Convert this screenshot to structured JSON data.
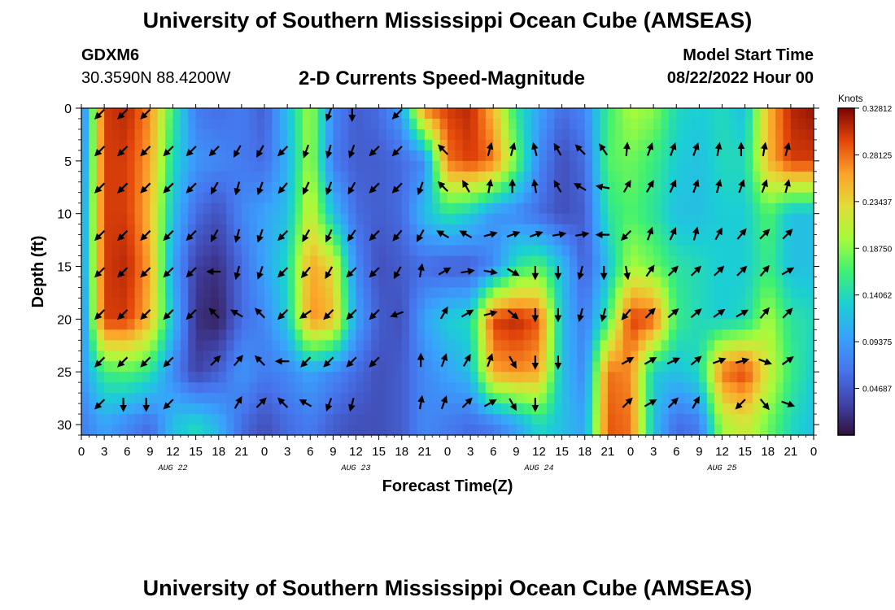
{
  "header": {
    "title": "University of Southern Mississippi Ocean Cube (AMSEAS)",
    "station_id": "GDXM6",
    "station_location": "30.3590N  88.4200W",
    "subtitle": "2-D Currents Speed-Magnitude",
    "model_start_label": "Model Start Time",
    "model_start_value": "08/22/2022 Hour 00"
  },
  "footer": {
    "title": "University of Southern Mississippi Ocean Cube (AMSEAS)"
  },
  "chart_data": {
    "type": "heatmap",
    "title": "2-D Currents Speed-Magnitude",
    "xlabel": "Forecast Time(Z)",
    "ylabel": "Depth (ft)",
    "xlim": [
      0,
      96
    ],
    "ylim": [
      0,
      31
    ],
    "x_ticks": [
      0,
      3,
      6,
      9,
      12,
      15,
      18,
      21,
      24,
      27,
      30,
      33,
      36,
      39,
      42,
      45,
      48,
      51,
      54,
      57,
      60,
      63,
      66,
      69,
      72,
      75,
      78,
      81,
      84,
      87,
      90,
      93,
      96
    ],
    "x_tick_labels": [
      "0",
      "3",
      "6",
      "9",
      "12",
      "15",
      "18",
      "21",
      "0",
      "3",
      "6",
      "9",
      "12",
      "15",
      "18",
      "21",
      "0",
      "3",
      "6",
      "9",
      "12",
      "15",
      "18",
      "21",
      "0",
      "3",
      "6",
      "9",
      "12",
      "15",
      "18",
      "21",
      "0"
    ],
    "y_ticks": [
      0,
      5,
      10,
      15,
      20,
      25,
      30
    ],
    "y_tick_labels": [
      "0",
      "5",
      "10",
      "15",
      "20",
      "25",
      "30"
    ],
    "date_labels": [
      {
        "x": 12,
        "label": "AUG 22"
      },
      {
        "x": 36,
        "label": "AUG 23"
      },
      {
        "x": 60,
        "label": "AUG 24"
      },
      {
        "x": 84,
        "label": "AUG 25"
      }
    ],
    "colorbar": {
      "label": "Knots",
      "min": 0.0,
      "max": 0.3281,
      "ticks": [
        "0.04687",
        "0.09375",
        "0.14062",
        "0.18750",
        "0.23437",
        "0.28125",
        "0.32812"
      ],
      "tick_values": [
        0.04687,
        0.09375,
        0.14062,
        0.1875,
        0.23437,
        0.28125,
        0.32812
      ]
    },
    "vector_times": [
      2.5,
      5.5,
      8.5,
      11.5,
      14.5,
      17.5,
      20.5,
      23.5,
      26.5,
      29.5,
      32.5,
      35.5,
      38.5,
      41.5,
      44.5,
      47.5,
      50.5,
      53.5,
      56.5,
      59.5,
      62.5,
      65.5,
      68.5,
      71.5,
      74.5,
      77.5,
      80.5,
      83.5,
      86.5,
      89.5,
      92.5
    ],
    "vector_depths": [
      0.5,
      4,
      7.5,
      12,
      15.5,
      19.5,
      24,
      28
    ],
    "speed_rows": [
      {
        "depth": 0,
        "values": [
          0.06,
          0.3,
          0.31,
          0.27,
          0.16,
          0.07,
          0.06,
          0.07,
          0.05,
          0.12,
          0.2,
          0.08,
          0.05,
          0.06,
          0.1,
          0.28,
          0.3,
          0.31,
          0.25,
          0.15,
          0.1,
          0.06,
          0.08,
          0.16,
          0.2,
          0.19,
          0.14,
          0.13,
          0.14,
          0.12,
          0.25,
          0.31,
          0.32
        ]
      },
      {
        "depth": 5,
        "values": [
          0.07,
          0.3,
          0.3,
          0.26,
          0.14,
          0.09,
          0.08,
          0.07,
          0.06,
          0.11,
          0.2,
          0.07,
          0.05,
          0.05,
          0.06,
          0.08,
          0.28,
          0.3,
          0.28,
          0.18,
          0.08,
          0.04,
          0.06,
          0.17,
          0.18,
          0.16,
          0.13,
          0.12,
          0.14,
          0.14,
          0.25,
          0.3,
          0.3
        ]
      },
      {
        "depth": 10,
        "values": [
          0.08,
          0.3,
          0.3,
          0.25,
          0.12,
          0.06,
          0.04,
          0.08,
          0.1,
          0.12,
          0.22,
          0.12,
          0.06,
          0.05,
          0.06,
          0.12,
          0.15,
          0.13,
          0.09,
          0.08,
          0.06,
          0.04,
          0.05,
          0.15,
          0.17,
          0.15,
          0.12,
          0.12,
          0.13,
          0.13,
          0.17,
          0.12,
          0.12
        ]
      },
      {
        "depth": 15,
        "values": [
          0.08,
          0.3,
          0.31,
          0.26,
          0.1,
          0.03,
          0.02,
          0.06,
          0.1,
          0.14,
          0.26,
          0.23,
          0.08,
          0.04,
          0.05,
          0.06,
          0.05,
          0.05,
          0.08,
          0.15,
          0.17,
          0.12,
          0.05,
          0.12,
          0.2,
          0.18,
          0.15,
          0.14,
          0.13,
          0.13,
          0.16,
          0.12,
          0.12
        ]
      },
      {
        "depth": 20,
        "values": [
          0.07,
          0.3,
          0.3,
          0.25,
          0.12,
          0.02,
          0.01,
          0.06,
          0.08,
          0.13,
          0.27,
          0.25,
          0.1,
          0.05,
          0.04,
          0.1,
          0.13,
          0.14,
          0.3,
          0.31,
          0.29,
          0.12,
          0.07,
          0.16,
          0.3,
          0.29,
          0.16,
          0.14,
          0.13,
          0.14,
          0.2,
          0.15,
          0.14
        ]
      },
      {
        "depth": 25,
        "values": [
          0.09,
          0.16,
          0.17,
          0.15,
          0.08,
          0.03,
          0.05,
          0.09,
          0.07,
          0.08,
          0.1,
          0.08,
          0.06,
          0.04,
          0.05,
          0.08,
          0.1,
          0.12,
          0.26,
          0.27,
          0.26,
          0.12,
          0.08,
          0.28,
          0.27,
          0.13,
          0.12,
          0.14,
          0.28,
          0.3,
          0.22,
          0.16,
          0.13
        ]
      },
      {
        "depth": 30,
        "values": [
          0.07,
          0.1,
          0.08,
          0.06,
          0.12,
          0.14,
          0.11,
          0.06,
          0.04,
          0.06,
          0.07,
          0.05,
          0.04,
          0.04,
          0.05,
          0.08,
          0.07,
          0.06,
          0.07,
          0.1,
          0.14,
          0.12,
          0.1,
          0.29,
          0.28,
          0.12,
          0.06,
          0.07,
          0.2,
          0.22,
          0.18,
          0.14,
          0.12
        ]
      }
    ],
    "vector_rows": [
      {
        "depth": 0.5,
        "dirs": [
          225,
          225,
          225,
          null,
          null,
          null,
          null,
          null,
          null,
          null,
          200,
          180,
          null,
          225,
          null,
          null,
          null,
          null,
          null,
          null,
          null,
          null,
          null,
          null,
          null,
          null,
          null,
          null,
          null,
          null,
          null
        ]
      },
      {
        "depth": 4,
        "dirs": [
          225,
          225,
          225,
          225,
          225,
          225,
          210,
          210,
          225,
          200,
          195,
          200,
          225,
          225,
          null,
          315,
          null,
          15,
          15,
          345,
          330,
          315,
          325,
          5,
          20,
          20,
          20,
          10,
          0,
          10,
          15
        ]
      },
      {
        "depth": 7.5,
        "dirs": [
          225,
          225,
          225,
          225,
          225,
          210,
          195,
          200,
          220,
          205,
          200,
          210,
          225,
          225,
          200,
          315,
          330,
          10,
          0,
          350,
          330,
          300,
          280,
          30,
          30,
          25,
          20,
          15,
          20,
          20,
          15
        ]
      },
      {
        "depth": 12,
        "dirs": [
          225,
          225,
          225,
          225,
          225,
          210,
          195,
          200,
          225,
          210,
          205,
          215,
          225,
          220,
          210,
          300,
          300,
          75,
          70,
          70,
          80,
          80,
          270,
          225,
          20,
          25,
          15,
          30,
          40,
          45,
          45
        ]
      },
      {
        "depth": 15.5,
        "dirs": [
          225,
          225,
          225,
          225,
          225,
          270,
          195,
          200,
          225,
          220,
          210,
          225,
          225,
          210,
          10,
          60,
          80,
          100,
          120,
          180,
          180,
          195,
          180,
          170,
          35,
          45,
          45,
          45,
          45,
          40,
          60
        ]
      },
      {
        "depth": 19.5,
        "dirs": [
          225,
          225,
          225,
          225,
          225,
          315,
          300,
          315,
          225,
          235,
          225,
          225,
          225,
          250,
          null,
          30,
          60,
          75,
          130,
          180,
          180,
          195,
          195,
          220,
          45,
          50,
          50,
          55,
          60,
          40,
          45
        ]
      },
      {
        "depth": 24,
        "dirs": [
          225,
          225,
          225,
          225,
          null,
          45,
          40,
          315,
          270,
          225,
          225,
          225,
          225,
          null,
          0,
          20,
          30,
          20,
          150,
          180,
          180,
          null,
          null,
          60,
          60,
          65,
          50,
          70,
          75,
          110,
          55
        ]
      },
      {
        "depth": 28,
        "dirs": [
          225,
          180,
          180,
          225,
          null,
          null,
          30,
          45,
          315,
          300,
          200,
          195,
          null,
          null,
          10,
          20,
          45,
          60,
          150,
          180,
          null,
          null,
          null,
          45,
          60,
          45,
          30,
          null,
          225,
          140,
          110
        ]
      }
    ]
  }
}
